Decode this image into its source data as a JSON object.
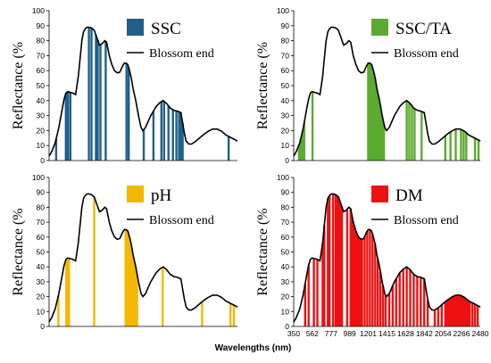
{
  "chart_data": [
    {
      "type": "line",
      "ylabel": "Reflectance (%",
      "xlabel": "",
      "ylim": [
        0,
        100
      ],
      "y_ticks": [
        0,
        10,
        20,
        30,
        40,
        50,
        60,
        70,
        80,
        90,
        100
      ],
      "x_tick_labels": [],
      "series": [
        {
          "name": "SSC",
          "kind": "bars",
          "color": "#1f5f8b"
        },
        {
          "name": "Blossom end",
          "kind": "line",
          "color": "#000000"
        }
      ],
      "bars_x": [
        430,
        540,
        563,
        590,
        800,
        830,
        880,
        900,
        930,
        990,
        1225,
        1250,
        1420,
        1530,
        1620,
        1650,
        1700,
        1750,
        1790,
        1820,
        1840,
        1860,
        2380
      ]
    },
    {
      "type": "line",
      "ylabel": "Reflectance (%",
      "xlabel": "",
      "ylim": [
        0,
        100
      ],
      "y_ticks": [
        0,
        10,
        20,
        30,
        40,
        50,
        60,
        70,
        80,
        90,
        100
      ],
      "x_tick_labels": [],
      "series": [
        {
          "name": "SSC/TA",
          "kind": "bars",
          "color": "#5aab2e"
        },
        {
          "name": "Blossom end",
          "kind": "line",
          "color": "#000000"
        }
      ],
      "bars_x": [
        410,
        430,
        450,
        470,
        565,
        1200,
        1210,
        1220,
        1230,
        1240,
        1250,
        1260,
        1270,
        1280,
        1290,
        1300,
        1320,
        1340,
        1360,
        1380,
        1640,
        1670,
        1700,
        1730,
        1810,
        2080,
        2140,
        2200,
        2260,
        2290,
        2320,
        2420,
        2460
      ]
    },
    {
      "type": "line",
      "ylabel": "Reflectance (%",
      "xlabel": "",
      "ylim": [
        0,
        100
      ],
      "y_ticks": [
        0,
        10,
        20,
        30,
        40,
        50,
        60,
        70,
        80,
        90,
        100
      ],
      "x_tick_labels": [],
      "series": [
        {
          "name": "pH",
          "kind": "bars",
          "color": "#f5b800"
        },
        {
          "name": "Blossom end",
          "kind": "line",
          "color": "#000000"
        }
      ],
      "bars_x": [
        455,
        545,
        560,
        575,
        860,
        1215,
        1225,
        1235,
        1245,
        1255,
        1265,
        1285,
        1305,
        1325,
        1345,
        1635,
        2080,
        2400,
        2440
      ]
    },
    {
      "type": "line",
      "ylabel": "Reflectance (%",
      "xlabel": "Wavelengths (nm)",
      "ylim": [
        0,
        100
      ],
      "y_ticks": [
        0,
        10,
        20,
        30,
        40,
        50,
        60,
        70,
        80,
        90,
        100
      ],
      "x_tick_labels": [
        "350",
        "562",
        "777",
        "989",
        "1201",
        "1415",
        "1628",
        "1842",
        "2054",
        "2266",
        "2480"
      ],
      "series": [
        {
          "name": "DM",
          "kind": "bars",
          "color": "#ee1111"
        },
        {
          "name": "Blossom end",
          "kind": "line",
          "color": "#000000"
        }
      ],
      "bars_x": [
        480,
        520,
        580,
        620,
        680,
        700,
        740,
        760,
        800,
        830,
        850,
        860,
        870,
        880,
        900,
        960,
        1000,
        1020,
        1030,
        1040,
        1050,
        1060,
        1070,
        1080,
        1090,
        1100,
        1110,
        1130,
        1160,
        1190,
        1220,
        1250,
        1280,
        1310,
        1340,
        1370,
        1400,
        1440,
        1480,
        1520,
        1560,
        1600,
        1640,
        1680,
        1720,
        1760,
        1800,
        1840,
        1880,
        1960,
        2000,
        2040,
        2080,
        2100,
        2120,
        2140,
        2160,
        2180,
        2200,
        2220,
        2240,
        2260,
        2280,
        2300,
        2320,
        2340,
        2360,
        2390,
        2420,
        2450
      ]
    }
  ],
  "spectrum": {
    "x": [
      350,
      380,
      420,
      460,
      500,
      520,
      540,
      560,
      590,
      620,
      650,
      680,
      700,
      720,
      740,
      760,
      780,
      800,
      830,
      860,
      890,
      920,
      950,
      980,
      1000,
      1010,
      1030,
      1060,
      1090,
      1120,
      1150,
      1180,
      1200,
      1220,
      1240,
      1260,
      1280,
      1300,
      1330,
      1360,
      1390,
      1410,
      1440,
      1470,
      1500,
      1530,
      1560,
      1600,
      1640,
      1680,
      1720,
      1760,
      1800,
      1840,
      1860,
      1880,
      1900,
      1930,
      1960,
      2000,
      2050,
      2100,
      2150,
      2200,
      2250,
      2300,
      2350,
      2400,
      2450,
      2480
    ],
    "y": [
      3,
      6,
      12,
      22,
      35,
      41,
      45,
      46,
      45.5,
      45,
      44,
      56,
      68,
      80,
      86,
      88,
      89,
      89,
      88.5,
      87,
      82,
      77,
      78,
      80,
      79,
      76,
      70,
      64,
      60,
      58.5,
      59,
      63,
      65,
      65,
      64,
      60,
      55,
      48,
      40,
      30,
      22,
      20,
      22,
      26,
      30,
      33,
      36,
      38.5,
      40,
      38,
      35,
      33.5,
      33,
      32,
      25,
      18,
      13,
      11,
      11,
      12.5,
      15,
      17.5,
      19.5,
      21,
      21,
      19.5,
      17,
      15.5,
      14,
      13
    ]
  }
}
